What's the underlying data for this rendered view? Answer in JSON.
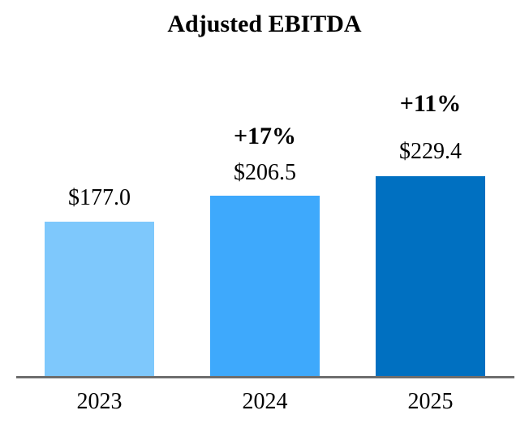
{
  "chart_data": {
    "type": "bar",
    "title": "Adjusted EBITDA",
    "categories": [
      "2023",
      "2024",
      "2025"
    ],
    "values": [
      177.0,
      206.5,
      229.4
    ],
    "value_labels": [
      "$177.0",
      "$206.5",
      "$229.4"
    ],
    "growth_labels": [
      "",
      "+17%",
      "+11%"
    ],
    "bar_colors": [
      "#7EC8FC",
      "#3EA9FC",
      "#0070C1"
    ],
    "axis_color": "#6E6E6E",
    "text_color": "#000000",
    "xlabel": "",
    "ylabel": "",
    "ylim": [
      0,
      240
    ],
    "grid": false,
    "y_axis_visible": false,
    "legend": "none"
  }
}
